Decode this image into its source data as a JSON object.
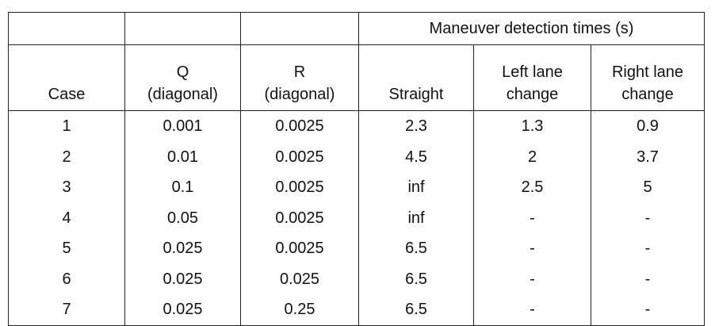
{
  "table": {
    "group_header": "Maneuver detection times (s)",
    "columns": [
      [
        "Case"
      ],
      [
        "Q",
        "(diagonal)"
      ],
      [
        "R",
        "(diagonal)"
      ],
      [
        "Straight"
      ],
      [
        "Left lane",
        "change"
      ],
      [
        "Right lane",
        "change"
      ]
    ],
    "rows": [
      [
        "1",
        "0.001",
        "0.0025",
        "2.3",
        "1.3",
        "0.9"
      ],
      [
        "2",
        "0.01",
        "0.0025",
        "4.5",
        "2",
        "3.7"
      ],
      [
        "3",
        "0.1",
        "0.0025",
        "inf",
        "2.5",
        "5"
      ],
      [
        "4",
        "0.05",
        "0.0025",
        "inf",
        "-",
        "-"
      ],
      [
        "5",
        "0.025",
        "0.0025",
        "6.5",
        "-",
        "-"
      ],
      [
        "6",
        "0.025",
        "0.025",
        "6.5",
        "-",
        "-"
      ],
      [
        "7",
        "0.025",
        "0.25",
        "6.5",
        "-",
        "-"
      ]
    ]
  }
}
